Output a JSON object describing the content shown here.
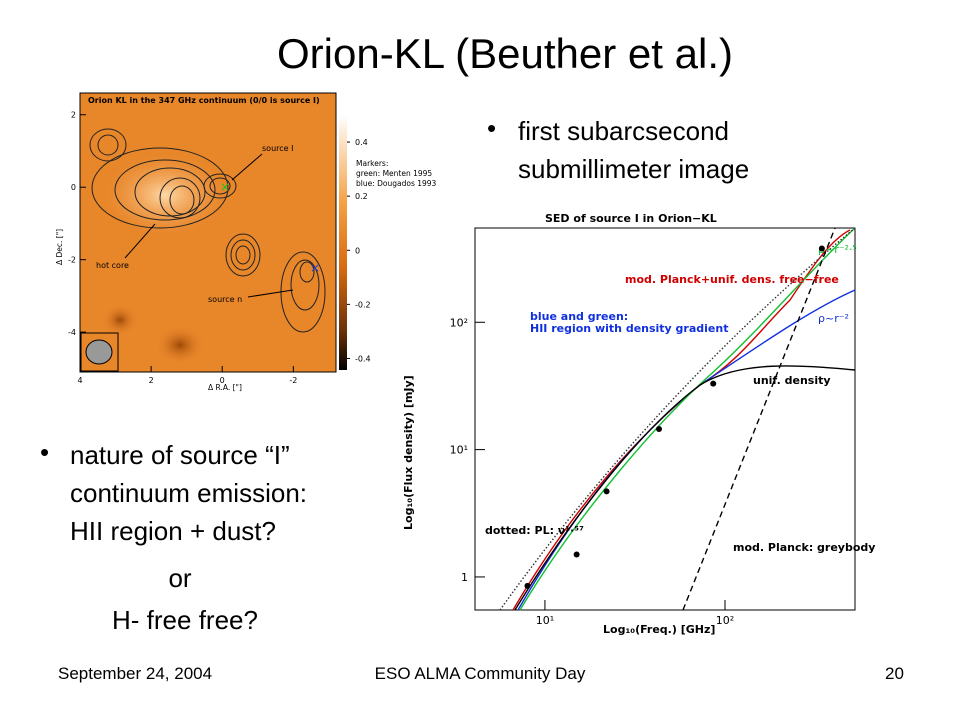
{
  "title": "Orion-KL (Beuther et al.)",
  "bullets_right": [
    "first subarcsecond submillimeter image"
  ],
  "bullets_left": [
    "nature of source “I” continuum emission: HII region + dust?"
  ],
  "left_lines": [
    "or",
    "H- free free?"
  ],
  "footer": {
    "date": "September 24, 2004",
    "event": "ESO ALMA Community Day",
    "page": "20"
  },
  "map": {
    "title": "Orion KL in the 347 GHz continuum (0/0 is source I)",
    "labels": [
      "source I",
      "hot core",
      "source n"
    ],
    "markers": [
      "Markers:",
      "green: Menten 1995",
      "blue: Dougados 1993"
    ],
    "xlabel": "Δ R.A. [\"]",
    "ylabel": "Δ Dec. [\"]",
    "xlim": [
      4,
      -3.2
    ],
    "xticks": [
      4,
      2,
      0,
      -2
    ],
    "ylim": [
      -5.1,
      2.6
    ],
    "yticks": [
      2,
      0,
      -2,
      -4
    ],
    "clim": [
      -0.45,
      0.5
    ],
    "cticks": [
      0.4,
      0.2,
      0,
      -0.2,
      -0.4
    ]
  },
  "sed_plot": {
    "title": "SED of source I in Orion−KL",
    "xlabel": "Log₁₀(Freq.) [GHz]",
    "ylabel": "Log₁₀(Flux density) [mJy]",
    "log": true,
    "xlim": [
      4.09,
      527
    ],
    "xticks": [
      {
        "value": 10,
        "label": "10¹"
      },
      {
        "value": 100,
        "label": "10²"
      }
    ],
    "ylim": [
      0.55,
      550
    ],
    "yticks": [
      1,
      {
        "value": 10,
        "label": "10¹"
      },
      {
        "value": 100,
        "label": "10²"
      }
    ],
    "x": [
      8,
      15,
      22,
      43,
      86,
      345
    ],
    "y": [
      0.85,
      1.5,
      4.7,
      14.5,
      33,
      380
    ],
    "annotations": [
      "ρ~r⁻²·⁵",
      "mod. Planck+unif. dens. free−free",
      "blue and green:",
      "HII region with density gradient",
      "ρ~r⁻²",
      "unif. density",
      "dotted: PL: ν¹·⁵⁷",
      "mod. Planck: greybody"
    ]
  }
}
